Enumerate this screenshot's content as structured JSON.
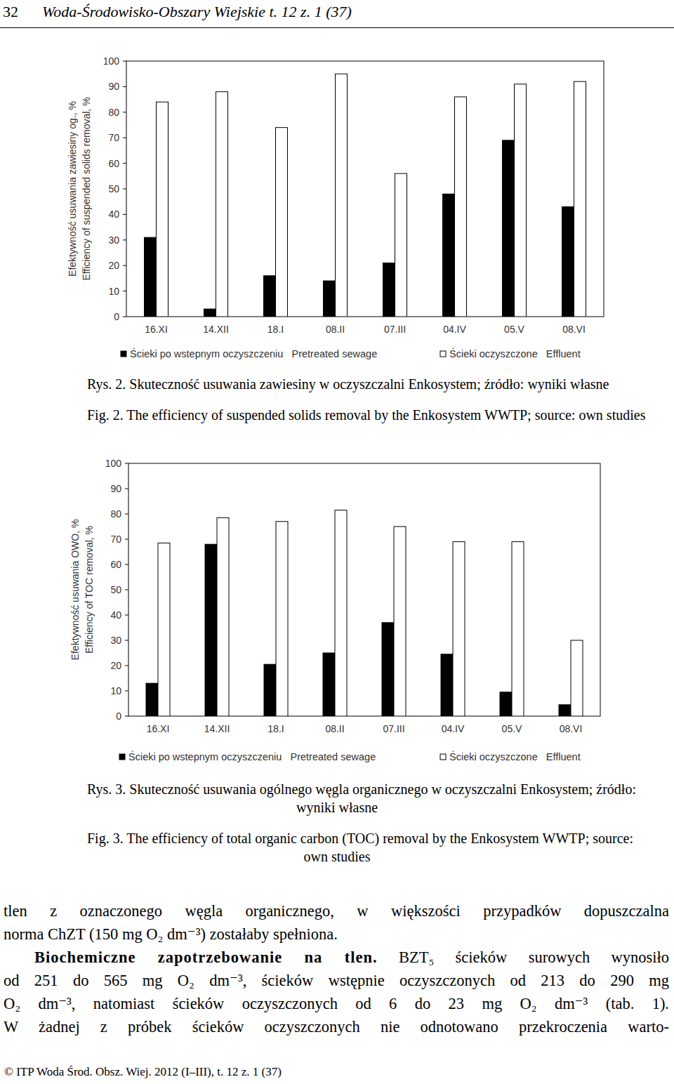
{
  "header": {
    "page": "32",
    "journal": "Woda-Środowisko-Obszary Wiejskie t. 12 z. 1 (37)"
  },
  "chart_data": [
    {
      "type": "bar",
      "categories": [
        "16.XI",
        "14.XII",
        "18.I",
        "08.II",
        "07.III",
        "04.IV",
        "05.V",
        "08.VI"
      ],
      "series": [
        {
          "name": "Ścieki po wstepnym oczyszczeniu   Pretreated sewage",
          "color": "#000000",
          "values": [
            31,
            3,
            16,
            14,
            21,
            48,
            69,
            43
          ]
        },
        {
          "name": "Ścieki oczyszczone   Effluent",
          "color": "#ffffff",
          "values": [
            84,
            88,
            74,
            95,
            56,
            86,
            91,
            92
          ]
        }
      ],
      "y_label": [
        "Efektywność usuwania zawiesiny og., %",
        "Efficiency of suspended solids removal, %"
      ],
      "ylim": [
        0,
        100
      ],
      "yticks": [
        0,
        10,
        20,
        30,
        40,
        50,
        60,
        70,
        80,
        90,
        100
      ],
      "legend": "bottom"
    },
    {
      "type": "bar",
      "categories": [
        "16.XI",
        "14.XII",
        "18.I",
        "08.II",
        "07.III",
        "04.IV",
        "05.V",
        "08.VI"
      ],
      "series": [
        {
          "name": "Ścieki po wstepnym oczyszczeniu   Pretreated sewage",
          "color": "#000000",
          "values": [
            13,
            68,
            20.5,
            25,
            37,
            24.5,
            9.5,
            4.5
          ]
        },
        {
          "name": "Ścieki oczyszczone   Effluent",
          "color": "#ffffff",
          "values": [
            68.5,
            78.5,
            77,
            81.5,
            75,
            69,
            69,
            30
          ]
        }
      ],
      "y_label": [
        "Efektywność usuwania OWO, %",
        "Efficiency of TOC removal, %"
      ],
      "ylim": [
        0,
        100
      ],
      "yticks": [
        0,
        10,
        20,
        30,
        40,
        50,
        60,
        70,
        80,
        90,
        100
      ],
      "legend": "bottom"
    }
  ],
  "captions": [
    {
      "pl": [
        "Rys. 2. Skuteczność usuwania zawiesiny w oczyszczalni Enkosystem; źródło: wyniki własne"
      ],
      "en": [
        "Fig. 2. The efficiency of suspended solids removal by the Enkosystem WWTP; source: own studies"
      ]
    },
    {
      "pl": [
        "Rys. 3. Skuteczność usuwania ogólnego węgla organicznego w oczyszczalni Enkosystem; źródło:",
        "wyniki własne"
      ],
      "en": [
        "Fig. 3. The efficiency of total organic carbon (TOC) removal by the Enkosystem WWTP; source:",
        "own studies"
      ]
    }
  ],
  "body": [
    {
      "text": "tlen z oznaczonego węgla organicznego, w większości przypadków dopuszczalna"
    },
    {
      "text": "norma ChZT (150 mg O₂ dm⁻³) zostałaby spełniona."
    },
    {
      "lead": "Biochemiczne zapotrzebowanie na tlen.",
      "text": "BZT₅ ścieków surowych wynosiło"
    },
    {
      "text": "od 251 do 565 mg O₂ dm⁻³, ścieków wstępnie oczyszczonych od 213 do 290 mg"
    },
    {
      "text": "O₂ dm⁻³, natomiast ścieków oczyszczonych od 6 do 23 mg O₂ dm⁻³ (tab. 1)."
    },
    {
      "text": "W żadnej z próbek ścieków oczyszczonych nie odnotowano przekroczenia warto-"
    }
  ],
  "footer": "© ITP Woda Środ. Obsz. Wiej. 2012 (I–III), t. 12 z. 1 (37)"
}
